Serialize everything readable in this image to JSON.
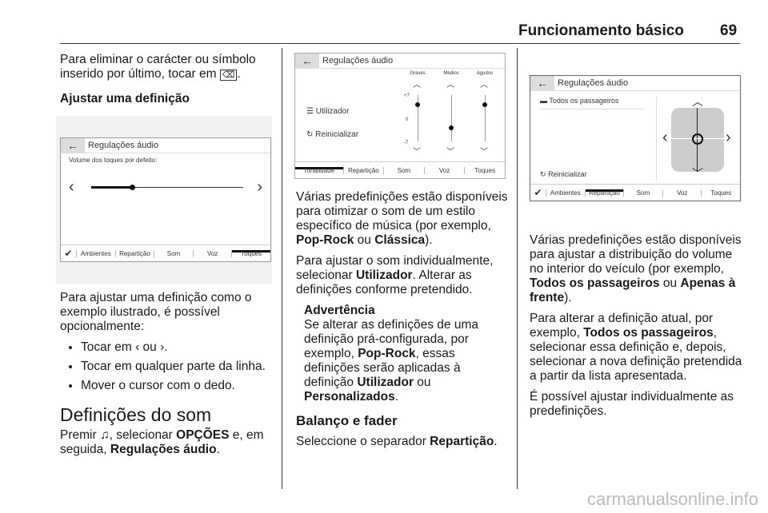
{
  "header": {
    "title": "Funcionamento básico",
    "page": "69"
  },
  "left": {
    "p1": "Para eliminar o carácter ou símbolo inserido por último, tocar em",
    "p1_end": ".",
    "h_adjust": "Ajustar uma definição",
    "shot1": {
      "back": "←",
      "title": "Regulações áudio",
      "label": "Volume dos toques por defeito:",
      "slider_value": 0.27,
      "tabs": [
        "✔",
        "Ambientes",
        "Repartição",
        "Som",
        "Voz",
        "Toques"
      ],
      "active_tab": "Toques"
    },
    "p2": "Para ajustar uma definição como o exemplo ilustrado, é possível opcionalmente:",
    "b1a": "Tocar em",
    "b1b": "ou",
    "b1c": ".",
    "b2": "Tocar em qualquer parte da linha.",
    "b3": "Mover o cursor com o dedo.",
    "h_sound": "Definições do som",
    "p3a": "Premir",
    "p3b": ", selecionar",
    "p3c": "OPÇÕES",
    "p3d": "e, em seguida,",
    "p3e": "Regulações áudio",
    "p3f": "."
  },
  "middle": {
    "shot2": {
      "back": "←",
      "title": "Regulações áudio",
      "items": [
        "Utilizador",
        "Reinicializar"
      ],
      "bands": [
        {
          "name": "Graves",
          "value": 4
        },
        {
          "name": "Médios",
          "value": -3
        },
        {
          "name": "Agudos",
          "value": 4
        }
      ],
      "scale": [
        "+7",
        "0",
        "-7"
      ],
      "tabs": [
        "Tonalidade",
        "Repartição",
        "Som",
        "Voz",
        "Toques"
      ],
      "active_tab": "Tonalidade"
    },
    "p1a": "Várias predefinições estão disponíveis para otimizar o som de um estilo específico de música (por exemplo,",
    "p1b": "Pop-Rock",
    "p1c": "ou",
    "p1d": "Clássica",
    "p1e": ").",
    "p2a": "Para ajustar o som individualmente, selecionar",
    "p2b": "Utilizador",
    "p2c": ". Alterar as definições conforme pretendido.",
    "warn_title": "Advertência",
    "w1": "Se alterar as definições de uma definição prá-configurada, por exemplo,",
    "w2": "Pop-Rock",
    "w3": ", essas definições serão aplicadas à definição",
    "w4": "Utilizador",
    "w5": "ou",
    "w6": "Personalizados",
    "w7": ".",
    "h_balance": "Balanço e fader",
    "p3a": "Seleccione o separador",
    "p3b": "Repartição",
    "p3c": "."
  },
  "right": {
    "shot3": {
      "back": "←",
      "title": "Regulações áudio",
      "item": "Todos os passageiros",
      "reset": "Reinicializar",
      "tabs": [
        "✔",
        "Ambientes",
        "Repartição",
        "Som",
        "Voz",
        "Toques"
      ],
      "active_tab": "Repartição"
    },
    "p1a": "Várias predefinições estão disponíveis para ajustar a distribuição do volume no interior do veículo (por exemplo,",
    "p1b": "Todos os passageiros",
    "p1c": "ou",
    "p1d": "Apenas à frente",
    "p1e": ").",
    "p2a": "Para alterar a definição atual, por exemplo,",
    "p2b": "Todos os passageiros",
    "p2c": ", selecionar essa definição e, depois, selecionar a nova definição pretendida a partir da lista apresentada.",
    "p3": "É possível ajustar individualmente as predefinições."
  },
  "watermark": "carmanualsonline.info"
}
